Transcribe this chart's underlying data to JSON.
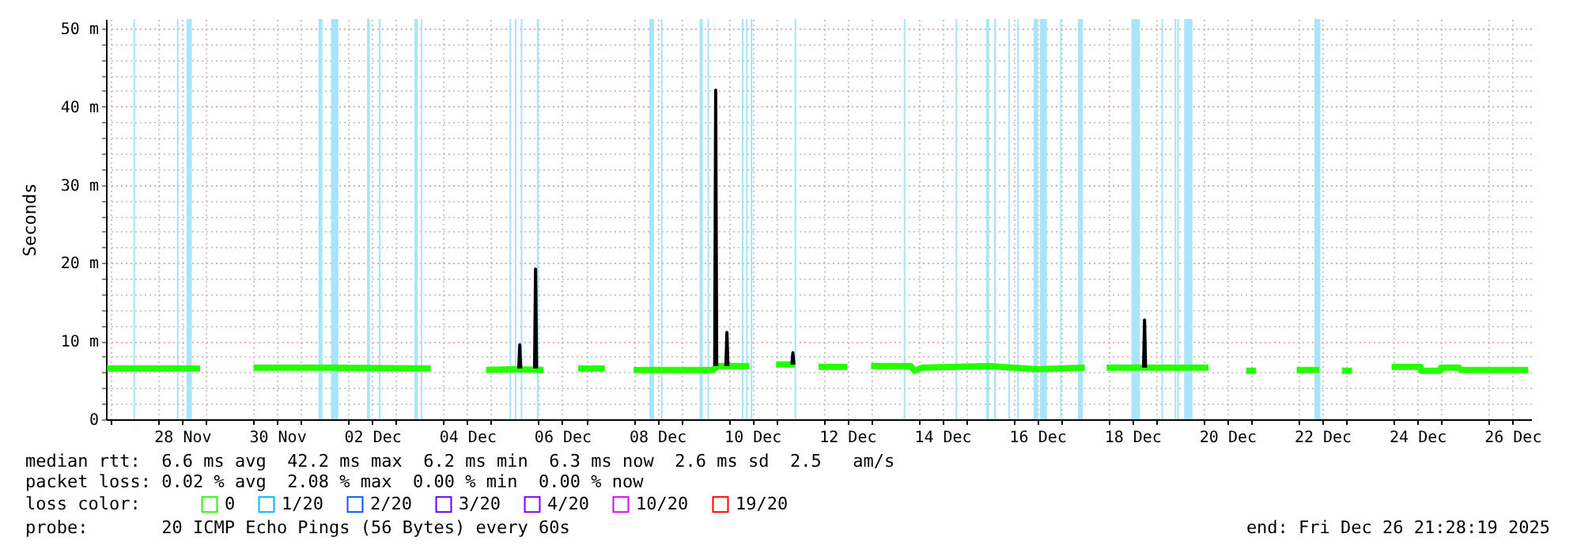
{
  "chart_data": {
    "type": "line",
    "ylabel": "Seconds",
    "legend_title": "loss color:",
    "legend": "bottom",
    "grid": true,
    "marker": "none",
    "line_style": "solid",
    "xlim": [
      "2025-11-26T21:28",
      "2025-12-26T21:28"
    ],
    "ylim": [
      0,
      51.2
    ],
    "yticks": [
      0,
      {
        "value": 2,
        "label": null
      },
      {
        "value": 4,
        "label": null
      },
      {
        "value": 6,
        "label": null
      },
      {
        "value": 8,
        "label": null
      },
      {
        "value": 10,
        "label": "10 m"
      },
      {
        "value": 12,
        "label": null
      },
      {
        "value": 14,
        "label": null
      },
      {
        "value": 16,
        "label": null
      },
      {
        "value": 18,
        "label": null
      },
      {
        "value": 20,
        "label": "20 m"
      },
      {
        "value": 22,
        "label": null
      },
      {
        "value": 24,
        "label": null
      },
      {
        "value": 26,
        "label": null
      },
      {
        "value": 28,
        "label": null
      },
      {
        "value": 30,
        "label": "30 m"
      },
      {
        "value": 32,
        "label": null
      },
      {
        "value": 34,
        "label": null
      },
      {
        "value": 36,
        "label": null
      },
      {
        "value": 38,
        "label": null
      },
      {
        "value": 40,
        "label": "40 m"
      },
      {
        "value": 42,
        "label": null
      },
      {
        "value": 44,
        "label": null
      },
      {
        "value": 46,
        "label": null
      },
      {
        "value": 48,
        "label": null
      },
      {
        "value": 50,
        "label": "50 m"
      }
    ],
    "xticks": [
      {
        "value": "2025-11-27T00:00",
        "label": null
      },
      {
        "value": "2025-11-28T00:00",
        "label": null
      },
      {
        "value": "2025-11-29T00:00",
        "label": null
      },
      {
        "value": "2025-11-30T00:00",
        "label": null
      },
      {
        "value": "2025-12-01T00:00",
        "label": null
      },
      {
        "value": "2025-12-02T00:00",
        "label": null
      },
      {
        "value": "2025-12-03T00:00",
        "label": null
      },
      {
        "value": "2025-12-04T00:00",
        "label": null
      },
      {
        "value": "2025-12-05T00:00",
        "label": null
      },
      {
        "value": "2025-12-06T00:00",
        "label": null
      },
      {
        "value": "2025-12-07T00:00",
        "label": null
      },
      {
        "value": "2025-12-08T00:00",
        "label": null
      },
      {
        "value": "2025-12-09T00:00",
        "label": null
      },
      {
        "value": "2025-12-10T00:00",
        "label": null
      },
      {
        "value": "2025-12-11T00:00",
        "label": null
      },
      {
        "value": "2025-12-12T00:00",
        "label": null
      },
      {
        "value": "2025-12-13T00:00",
        "label": null
      },
      {
        "value": "2025-12-14T00:00",
        "label": null
      },
      {
        "value": "2025-12-15T00:00",
        "label": null
      },
      {
        "value": "2025-12-16T00:00",
        "label": null
      },
      {
        "value": "2025-12-17T00:00",
        "label": null
      },
      {
        "value": "2025-12-18T00:00",
        "label": null
      },
      {
        "value": "2025-12-19T00:00",
        "label": null
      },
      {
        "value": "2025-12-20T00:00",
        "label": null
      },
      {
        "value": "2025-12-21T00:00",
        "label": null
      },
      {
        "value": "2025-12-22T00:00",
        "label": null
      },
      {
        "value": "2025-12-23T00:00",
        "label": null
      },
      {
        "value": "2025-12-24T00:00",
        "label": null
      },
      {
        "value": "2025-12-25T00:00",
        "label": null
      },
      {
        "value": "2025-12-26T00:00",
        "label": null
      },
      {
        "value": "2025-11-28T12:00",
        "label": "28 Nov"
      },
      {
        "value": "2025-11-30T12:00",
        "label": "30 Nov"
      },
      {
        "value": "2025-12-02T12:00",
        "label": "02 Dec"
      },
      {
        "value": "2025-12-04T12:00",
        "label": "04 Dec"
      },
      {
        "value": "2025-12-06T12:00",
        "label": "06 Dec"
      },
      {
        "value": "2025-12-08T12:00",
        "label": "08 Dec"
      },
      {
        "value": "2025-12-10T12:00",
        "label": "10 Dec"
      },
      {
        "value": "2025-12-12T12:00",
        "label": "12 Dec"
      },
      {
        "value": "2025-12-14T12:00",
        "label": "14 Dec"
      },
      {
        "value": "2025-12-16T12:00",
        "label": "16 Dec"
      },
      {
        "value": "2025-12-18T12:00",
        "label": "18 Dec"
      },
      {
        "value": "2025-12-20T12:00",
        "label": "20 Dec"
      },
      {
        "value": "2025-12-22T12:00",
        "label": "22 Dec"
      },
      {
        "value": "2025-12-24T12:00",
        "label": "24 Dec"
      },
      {
        "value": "2025-12-26T12:00",
        "label": "26 Dec"
      }
    ],
    "series": [
      {
        "name": "0",
        "color": "#26ff00",
        "x": [
          "2025-11-26T22:00",
          "2025-11-28T21:00",
          "2025-11-29T20:00",
          "2025-11-30T00:00",
          "2025-12-01T12:00",
          "2025-12-03T17:30",
          "2025-12-04T12:00",
          "2025-12-04T21:30",
          "2025-12-05T12:00",
          "2025-12-06T02:30",
          "2025-12-06T10:00",
          "2025-12-06T20:00",
          "2025-12-07T09:30",
          "2025-12-07T16:00",
          "2025-12-08T00:00",
          "2025-12-09T16:00",
          "2025-12-09T18:30",
          "2025-12-10T10:30",
          "2025-12-10T16:00",
          "2025-12-11T00:00",
          "2025-12-11T09:30",
          "2025-12-11T16:00",
          "2025-12-11T21:30",
          "2025-12-12T12:00",
          "2025-12-12T18:00",
          "2025-12-13T00:00",
          "2025-12-13T20:00",
          "2025-12-13T22:00",
          "2025-12-14T02:00",
          "2025-12-15T12:00",
          "2025-12-16T12:00",
          "2025-12-17T12:00",
          "2025-12-17T18:00",
          "2025-12-17T23:00",
          "2025-12-19T12:00",
          "2025-12-20T02:30",
          "2025-12-20T12:00",
          "2025-12-20T21:30",
          "2025-12-21T02:30",
          "2025-12-21T12:00",
          "2025-12-21T23:00",
          "2025-12-22T10:30",
          "2025-12-22T18:00",
          "2025-12-22T22:00",
          "2025-12-23T03:00",
          "2025-12-23T20:00",
          "2025-12-23T23:00",
          "2025-12-24T13:30",
          "2025-12-24T14:00",
          "2025-12-24T23:30",
          "2025-12-25T00:00",
          "2025-12-25T09:00",
          "2025-12-25T10:00",
          "2025-12-26T20:00"
        ],
        "values": [
          6.5,
          6.5,
          null,
          6.6,
          6.6,
          6.5,
          null,
          6.3,
          6.4,
          6.3,
          null,
          6.5,
          6.5,
          null,
          6.3,
          6.3,
          6.8,
          6.8,
          null,
          7.0,
          7.0,
          null,
          6.7,
          6.7,
          null,
          6.8,
          6.8,
          6.2,
          6.6,
          6.8,
          6.4,
          6.6,
          null,
          6.6,
          6.6,
          6.6,
          null,
          6.2,
          6.2,
          null,
          6.3,
          6.3,
          null,
          6.2,
          6.2,
          null,
          6.7,
          6.7,
          6.2,
          6.2,
          6.6,
          6.6,
          6.3,
          6.3
        ]
      },
      {
        "name": "1/20",
        "color": "#00b8ff"
      },
      {
        "name": "2/20",
        "color": "#0059ff"
      },
      {
        "name": "3/20",
        "color": "#5e00ff"
      },
      {
        "name": "4/20",
        "color": "#7e00ff"
      },
      {
        "name": "10/20",
        "color": "#dd00ff"
      },
      {
        "name": "19/20",
        "color": "#ff0000"
      },
      {
        "color": "#000000",
        "x": [
          "2025-12-05T14:00",
          "2025-12-05T14:30",
          "2025-12-05T15:00",
          "2025-12-05T18:00",
          "2025-12-05T22:00",
          "2025-12-05T22:30",
          "2025-12-05T23:00",
          "2025-12-06T01:00",
          "2025-12-09T17:00",
          "2025-12-09T17:30",
          "2025-12-09T18:00",
          "2025-12-09T20:00",
          "2025-12-09T22:40",
          "2025-12-09T23:10",
          "2025-12-09T23:40",
          "2025-12-10T03:00",
          "2025-12-11T08:00",
          "2025-12-11T08:30",
          "2025-12-11T09:00",
          "2025-12-11T12:00",
          "2025-12-18T17:40",
          "2025-12-18T18:10",
          "2025-12-18T18:40"
        ],
        "values": [
          6.5,
          9.5,
          6.5,
          null,
          6.5,
          19.2,
          6.5,
          null,
          6.8,
          42.1,
          6.8,
          null,
          6.8,
          11.1,
          6.8,
          null,
          7.0,
          8.5,
          7.0,
          null,
          6.6,
          12.7,
          6.6
        ]
      }
    ],
    "bands": [
      {
        "axis": "x",
        "from": "2025-11-27T11:20",
        "to": "2025-11-27T12:10",
        "color": "#a8e4fa"
      },
      {
        "axis": "x",
        "from": "2025-11-28T09:20",
        "to": "2025-11-28T10:10",
        "color": "#a8e4fa"
      },
      {
        "axis": "x",
        "from": "2025-11-28T14:10",
        "to": "2025-11-28T16:50",
        "color": "#a8e4fa"
      },
      {
        "axis": "x",
        "from": "2025-12-01T08:50",
        "to": "2025-12-01T10:50",
        "color": "#a8e4fa"
      },
      {
        "axis": "x",
        "from": "2025-12-01T15:10",
        "to": "2025-12-01T18:50",
        "color": "#a8e4fa"
      },
      {
        "axis": "x",
        "from": "2025-12-02T09:20",
        "to": "2025-12-02T10:50",
        "color": "#a8e4fa"
      },
      {
        "axis": "x",
        "from": "2025-12-02T15:20",
        "to": "2025-12-02T16:10",
        "color": "#a8e4fa"
      },
      {
        "axis": "x",
        "from": "2025-12-03T09:20",
        "to": "2025-12-03T11:00",
        "color": "#a8e4fa"
      },
      {
        "axis": "x",
        "from": "2025-12-03T12:30",
        "to": "2025-12-03T13:20",
        "color": "#a8e4fa"
      },
      {
        "axis": "x",
        "from": "2025-12-05T09:20",
        "to": "2025-12-05T10:10",
        "color": "#a8e4fa"
      },
      {
        "axis": "x",
        "from": "2025-12-05T12:00",
        "to": "2025-12-05T12:50",
        "color": "#a8e4fa"
      },
      {
        "axis": "x",
        "from": "2025-12-05T15:00",
        "to": "2025-12-05T15:50",
        "color": "#a8e4fa"
      },
      {
        "axis": "x",
        "from": "2025-12-05T23:10",
        "to": "2025-12-06T00:00",
        "color": "#a8e4fa"
      },
      {
        "axis": "x",
        "from": "2025-12-08T08:00",
        "to": "2025-12-08T10:20",
        "color": "#a8e4fa"
      },
      {
        "axis": "x",
        "from": "2025-12-08T13:50",
        "to": "2025-12-08T14:40",
        "color": "#a8e4fa"
      },
      {
        "axis": "x",
        "from": "2025-12-09T09:20",
        "to": "2025-12-09T11:00",
        "color": "#a8e4fa"
      },
      {
        "axis": "x",
        "from": "2025-12-09T13:20",
        "to": "2025-12-09T14:10",
        "color": "#a8e4fa"
      },
      {
        "axis": "x",
        "from": "2025-12-10T06:40",
        "to": "2025-12-10T07:30",
        "color": "#a8e4fa"
      },
      {
        "axis": "x",
        "from": "2025-12-10T08:50",
        "to": "2025-12-10T09:40",
        "color": "#a8e4fa"
      },
      {
        "axis": "x",
        "from": "2025-12-10T11:10",
        "to": "2025-12-10T12:00",
        "color": "#a8e4fa"
      },
      {
        "axis": "x",
        "from": "2025-12-11T09:20",
        "to": "2025-12-11T10:10",
        "color": "#a8e4fa"
      },
      {
        "axis": "x",
        "from": "2025-12-13T16:30",
        "to": "2025-12-13T17:20",
        "color": "#a8e4fa"
      },
      {
        "axis": "x",
        "from": "2025-12-14T18:40",
        "to": "2025-12-14T19:30",
        "color": "#a8e4fa"
      },
      {
        "axis": "x",
        "from": "2025-12-15T10:10",
        "to": "2025-12-15T11:40",
        "color": "#a8e4fa"
      },
      {
        "axis": "x",
        "from": "2025-12-15T14:10",
        "to": "2025-12-15T15:10",
        "color": "#a8e4fa"
      },
      {
        "axis": "x",
        "from": "2025-12-15T21:20",
        "to": "2025-12-15T22:10",
        "color": "#a8e4fa"
      },
      {
        "axis": "x",
        "from": "2025-12-16T01:50",
        "to": "2025-12-16T02:40",
        "color": "#a8e4fa"
      },
      {
        "axis": "x",
        "from": "2025-12-16T10:10",
        "to": "2025-12-16T12:20",
        "color": "#a8e4fa"
      },
      {
        "axis": "x",
        "from": "2025-12-16T13:20",
        "to": "2025-12-16T16:50",
        "color": "#a8e4fa"
      },
      {
        "axis": "x",
        "from": "2025-12-16T23:30",
        "to": "2025-12-17T00:10",
        "color": "#a8e4fa"
      },
      {
        "axis": "x",
        "from": "2025-12-17T08:30",
        "to": "2025-12-17T11:00",
        "color": "#a8e4fa"
      },
      {
        "axis": "x",
        "from": "2025-12-18T11:30",
        "to": "2025-12-18T15:50",
        "color": "#a8e4fa"
      },
      {
        "axis": "x",
        "from": "2025-12-19T02:40",
        "to": "2025-12-19T03:30",
        "color": "#a8e4fa"
      },
      {
        "axis": "x",
        "from": "2025-12-19T09:20",
        "to": "2025-12-19T10:10",
        "color": "#a8e4fa"
      },
      {
        "axis": "x",
        "from": "2025-12-19T10:40",
        "to": "2025-12-19T11:30",
        "color": "#a8e4fa"
      },
      {
        "axis": "x",
        "from": "2025-12-19T14:10",
        "to": "2025-12-19T18:20",
        "color": "#a8e4fa"
      },
      {
        "axis": "x",
        "from": "2025-12-22T08:00",
        "to": "2025-12-22T11:00",
        "color": "#a8e4fa"
      }
    ],
    "annotations": [
      "median rtt:  6.6 ms avg  42.2 ms max  6.2 ms min  6.3 ms now  2.6 ms sd  2.5   am/s",
      "packet loss: 0.02 % avg  2.08 % max  0.00 % min  0.00 % now",
      "probe:       20 ICMP Echo Pings (56 Bytes) every 60s",
      "end: Fri Dec 26 21:28:19 2025"
    ]
  }
}
